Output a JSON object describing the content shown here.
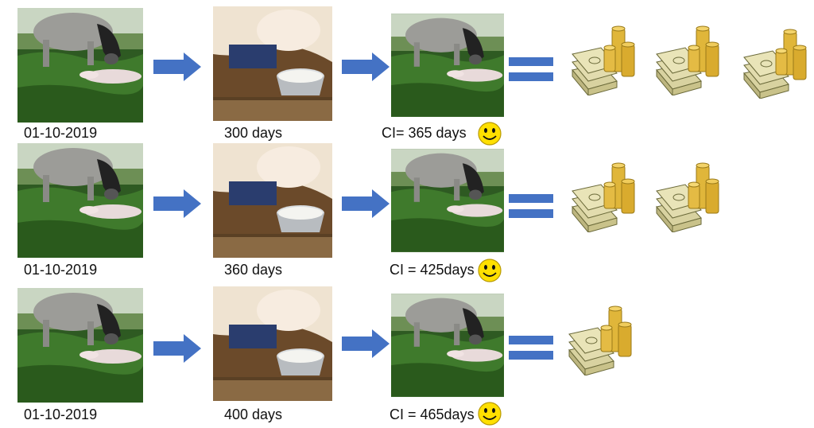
{
  "rows": [
    {
      "date": "01-10-2019",
      "duration": "300 days",
      "ci": "CI= 365 days",
      "money_stacks": 3
    },
    {
      "date": "01-10-2019",
      "duration": "360 days",
      "ci": "CI = 425days",
      "money_stacks": 2
    },
    {
      "date": "01-10-2019",
      "duration": "400 days",
      "ci": "CI = 465days",
      "money_stacks": 1
    }
  ],
  "colors": {
    "arrow": "#4472c4",
    "equals": "#4472c4",
    "smiley": "#ffe000"
  },
  "icons": {
    "cow_photo": "cow-with-calf-photo",
    "milking_photo": "milking-bucket-photo",
    "arrow": "right-arrow-icon",
    "equals": "equals-sign-icon",
    "smiley": "smiley-face-icon",
    "money": "money-stack-coins-icon"
  }
}
